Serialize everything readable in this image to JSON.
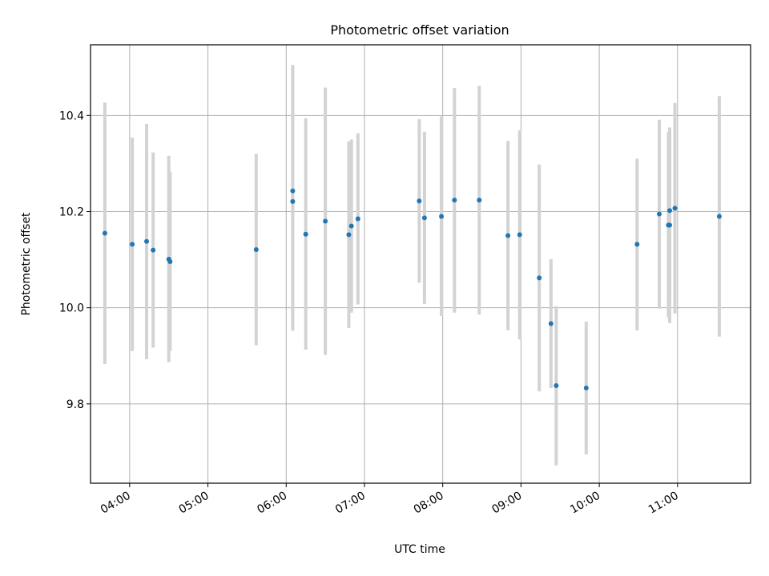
{
  "chart_data": {
    "type": "scatter",
    "title": "Photometric offset variation",
    "xlabel": "UTC time",
    "ylabel": "Photometric offset",
    "x_unit": "UTC time (HH:MM)",
    "xlim": [
      "03:30",
      "11:56"
    ],
    "ylim": [
      9.635,
      10.547
    ],
    "x_ticks": [
      "04:00",
      "05:00",
      "06:00",
      "07:00",
      "08:00",
      "09:00",
      "10:00",
      "11:00"
    ],
    "y_ticks": [
      9.8,
      10.0,
      10.2,
      10.4
    ],
    "y_tick_labels": [
      "9.8",
      "10.0",
      "10.2",
      "10.4"
    ],
    "grid": true,
    "series": [
      {
        "marker_color": "#1f77b4",
        "errorbar_color": "#d3d3d3",
        "points": [
          {
            "x": "03:41",
            "y": 10.155,
            "yerr": [
              9.883,
              10.427
            ]
          },
          {
            "x": "04:02",
            "y": 10.132,
            "yerr": [
              9.91,
              10.354
            ]
          },
          {
            "x": "04:13",
            "y": 10.138,
            "yerr": [
              9.893,
              10.382
            ]
          },
          {
            "x": "04:18",
            "y": 10.12,
            "yerr": [
              9.917,
              10.323
            ]
          },
          {
            "x": "04:30",
            "y": 10.101,
            "yerr": [
              9.887,
              10.316
            ]
          },
          {
            "x": "04:31",
            "y": 10.096,
            "yerr": [
              9.91,
              10.283
            ]
          },
          {
            "x": "05:37",
            "y": 10.121,
            "yerr": [
              9.922,
              10.32
            ]
          },
          {
            "x": "06:05",
            "y": 10.243,
            "yerr": [
              9.98,
              10.505
            ]
          },
          {
            "x": "06:05",
            "y": 10.221,
            "yerr": [
              9.952,
              10.49
            ]
          },
          {
            "x": "06:15",
            "y": 10.153,
            "yerr": [
              9.913,
              10.394
            ]
          },
          {
            "x": "06:30",
            "y": 10.18,
            "yerr": [
              9.902,
              10.458
            ]
          },
          {
            "x": "06:48",
            "y": 10.152,
            "yerr": [
              9.958,
              10.346
            ]
          },
          {
            "x": "06:50",
            "y": 10.17,
            "yerr": [
              9.99,
              10.35
            ]
          },
          {
            "x": "06:55",
            "y": 10.185,
            "yerr": [
              10.007,
              10.363
            ]
          },
          {
            "x": "07:42",
            "y": 10.222,
            "yerr": [
              10.052,
              10.392
            ]
          },
          {
            "x": "07:46",
            "y": 10.187,
            "yerr": [
              10.008,
              10.366
            ]
          },
          {
            "x": "07:59",
            "y": 10.19,
            "yerr": [
              9.983,
              10.398
            ]
          },
          {
            "x": "08:09",
            "y": 10.224,
            "yerr": [
              9.99,
              10.457
            ]
          },
          {
            "x": "08:28",
            "y": 10.224,
            "yerr": [
              9.986,
              10.462
            ]
          },
          {
            "x": "08:50",
            "y": 10.15,
            "yerr": [
              9.953,
              10.347
            ]
          },
          {
            "x": "08:59",
            "y": 10.152,
            "yerr": [
              9.934,
              10.369
            ]
          },
          {
            "x": "09:14",
            "y": 10.062,
            "yerr": [
              9.826,
              10.298
            ]
          },
          {
            "x": "09:23",
            "y": 9.967,
            "yerr": [
              9.833,
              10.101
            ]
          },
          {
            "x": "09:27",
            "y": 9.838,
            "yerr": [
              9.672,
              10.003
            ]
          },
          {
            "x": "09:50",
            "y": 9.833,
            "yerr": [
              9.695,
              9.971
            ]
          },
          {
            "x": "10:29",
            "y": 10.132,
            "yerr": [
              9.953,
              10.31
            ]
          },
          {
            "x": "10:46",
            "y": 10.195,
            "yerr": [
              9.998,
              10.391
            ]
          },
          {
            "x": "10:53",
            "y": 10.172,
            "yerr": [
              9.98,
              10.365
            ]
          },
          {
            "x": "10:54",
            "y": 10.172,
            "yerr": [
              9.968,
              10.375
            ]
          },
          {
            "x": "10:54",
            "y": 10.202,
            "yerr": [
              10.01,
              10.365
            ]
          },
          {
            "x": "10:58",
            "y": 10.207,
            "yerr": [
              9.988,
              10.426
            ]
          },
          {
            "x": "11:32",
            "y": 10.19,
            "yerr": [
              9.94,
              10.44
            ]
          }
        ]
      }
    ]
  }
}
